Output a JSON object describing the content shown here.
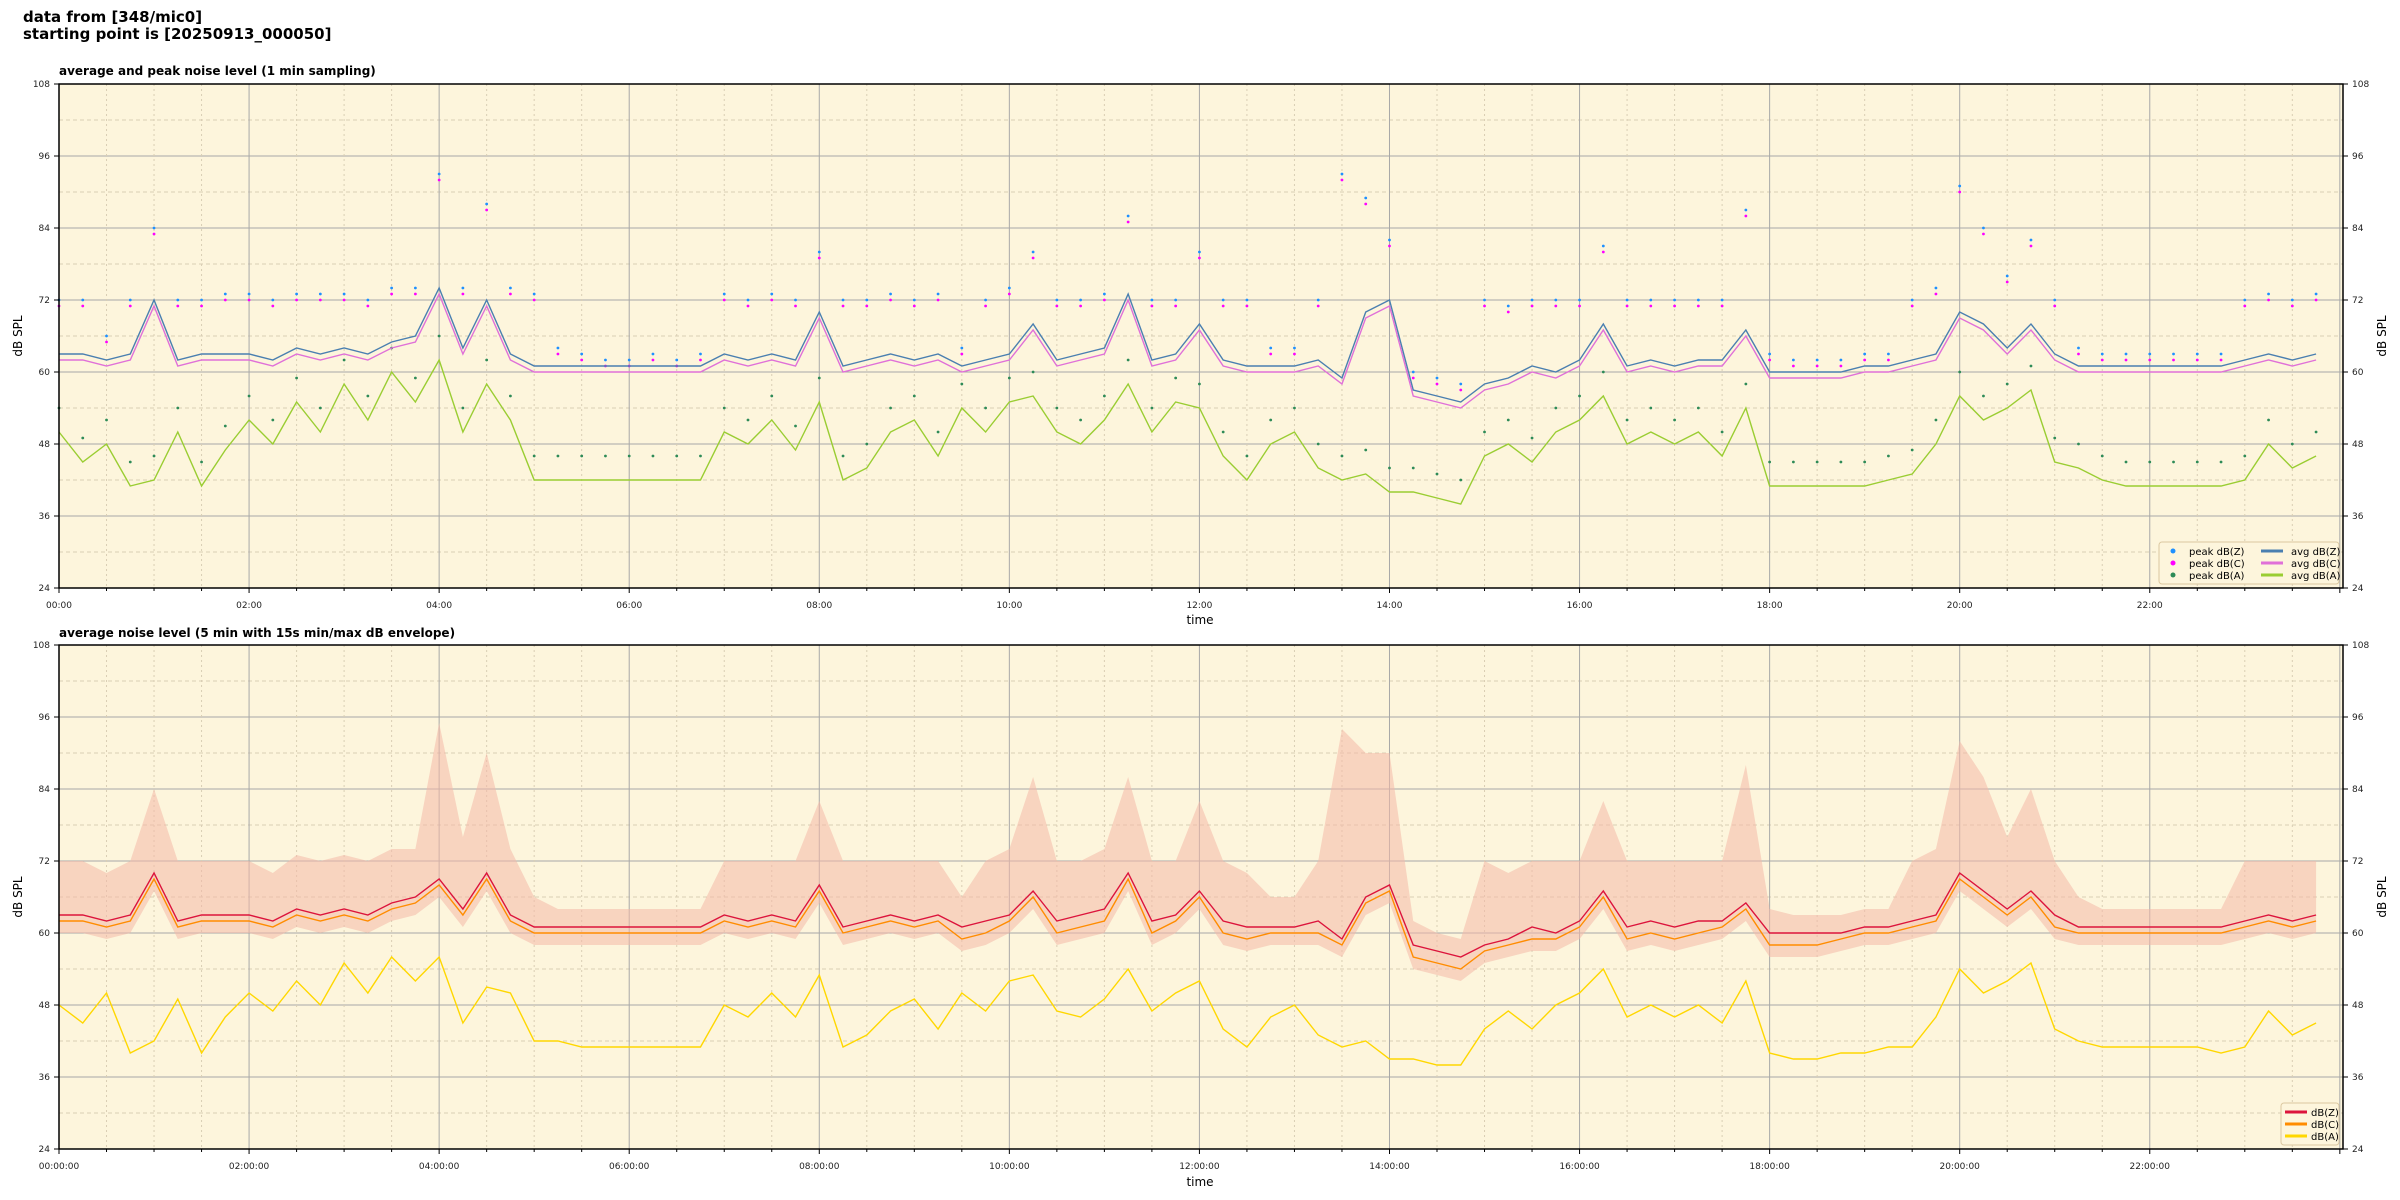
{
  "header": {
    "line1": "data from [348/mic0]",
    "line2": "starting point is [20250913_000050]"
  },
  "chart_data": [
    {
      "type": "line",
      "title": "average and peak noise level (1 min sampling)",
      "xlabel": "time",
      "ylabel": "dB SPL",
      "ylim": [
        24,
        108
      ],
      "yticks": [
        "24",
        "36",
        "48",
        "60",
        "72",
        "84",
        "96",
        "108"
      ],
      "xticks": [
        "00:00",
        "02:00",
        "04:00",
        "06:00",
        "08:00",
        "10:00",
        "12:00",
        "14:00",
        "16:00",
        "18:00",
        "20:00",
        "22:00"
      ],
      "xlim": [
        "00:00",
        "24:02"
      ],
      "grid": true,
      "background": "#fdf5dc",
      "legend_position": "lower-right",
      "x": [
        "00:00",
        "00:15",
        "00:30",
        "00:45",
        "01:00",
        "01:15",
        "01:30",
        "01:45",
        "02:00",
        "02:15",
        "02:30",
        "02:45",
        "03:00",
        "03:15",
        "03:30",
        "03:45",
        "04:00",
        "04:15",
        "04:30",
        "04:45",
        "05:00",
        "05:15",
        "05:30",
        "05:45",
        "06:00",
        "06:15",
        "06:30",
        "06:45",
        "07:00",
        "07:15",
        "07:30",
        "07:45",
        "08:00",
        "08:15",
        "08:30",
        "08:45",
        "09:00",
        "09:15",
        "09:30",
        "09:45",
        "10:00",
        "10:15",
        "10:30",
        "10:45",
        "11:00",
        "11:15",
        "11:30",
        "11:45",
        "12:00",
        "12:15",
        "12:30",
        "12:45",
        "13:00",
        "13:15",
        "13:30",
        "13:45",
        "14:00",
        "14:15",
        "14:30",
        "14:45",
        "15:00",
        "15:15",
        "15:30",
        "15:45",
        "16:00",
        "16:15",
        "16:30",
        "16:45",
        "17:00",
        "17:15",
        "17:30",
        "17:45",
        "18:00",
        "18:15",
        "18:30",
        "18:45",
        "19:00",
        "19:15",
        "19:30",
        "19:45",
        "20:00",
        "20:15",
        "20:30",
        "20:45",
        "21:00",
        "21:15",
        "21:30",
        "21:45",
        "22:00",
        "22:15",
        "22:30",
        "22:45",
        "23:00",
        "23:15",
        "23:30",
        "23:45"
      ],
      "series": [
        {
          "name": "peak dB(Z)",
          "kind": "scatter",
          "color": "#1e90ff",
          "values": [
            72,
            72,
            66,
            72,
            84,
            72,
            72,
            73,
            73,
            72,
            73,
            73,
            73,
            72,
            74,
            74,
            93,
            74,
            88,
            74,
            73,
            64,
            63,
            62,
            62,
            63,
            62,
            63,
            73,
            72,
            73,
            72,
            80,
            72,
            72,
            73,
            72,
            73,
            64,
            72,
            74,
            80,
            72,
            72,
            73,
            86,
            72,
            72,
            80,
            72,
            72,
            64,
            64,
            72,
            93,
            89,
            82,
            60,
            59,
            58,
            72,
            71,
            72,
            72,
            72,
            81,
            72,
            72,
            72,
            72,
            72,
            87,
            63,
            62,
            62,
            62,
            63,
            63,
            72,
            74,
            91,
            84,
            76,
            82,
            72,
            64,
            63,
            63,
            63,
            63,
            63,
            63,
            72,
            73,
            72,
            73
          ]
        },
        {
          "name": "peak dB(C)",
          "kind": "scatter",
          "color": "#ff00ff",
          "values": [
            71,
            71,
            65,
            71,
            83,
            71,
            71,
            72,
            72,
            71,
            72,
            72,
            72,
            71,
            73,
            73,
            92,
            73,
            87,
            73,
            72,
            63,
            62,
            61,
            61,
            62,
            61,
            62,
            72,
            71,
            72,
            71,
            79,
            71,
            71,
            72,
            71,
            72,
            63,
            71,
            73,
            79,
            71,
            71,
            72,
            85,
            71,
            71,
            79,
            71,
            71,
            63,
            63,
            71,
            92,
            88,
            81,
            59,
            58,
            57,
            71,
            70,
            71,
            71,
            71,
            80,
            71,
            71,
            71,
            71,
            71,
            86,
            62,
            61,
            61,
            61,
            62,
            62,
            71,
            73,
            90,
            83,
            75,
            81,
            71,
            63,
            62,
            62,
            62,
            62,
            62,
            62,
            71,
            72,
            71,
            72
          ]
        },
        {
          "name": "peak dB(A)",
          "kind": "scatter",
          "color": "#2e8b57",
          "values": [
            54,
            49,
            52,
            45,
            46,
            54,
            45,
            51,
            56,
            52,
            59,
            54,
            62,
            56,
            64,
            59,
            66,
            54,
            62,
            56,
            46,
            46,
            46,
            46,
            46,
            46,
            46,
            46,
            54,
            52,
            56,
            51,
            59,
            46,
            48,
            54,
            56,
            50,
            58,
            54,
            59,
            60,
            54,
            52,
            56,
            62,
            54,
            59,
            58,
            50,
            46,
            52,
            54,
            48,
            46,
            47,
            44,
            44,
            43,
            42,
            50,
            52,
            49,
            54,
            56,
            60,
            52,
            54,
            52,
            54,
            50,
            58,
            45,
            45,
            45,
            45,
            45,
            46,
            47,
            52,
            60,
            56,
            58,
            61,
            49,
            48,
            46,
            45,
            45,
            45,
            45,
            45,
            46,
            52,
            48,
            50
          ]
        },
        {
          "name": "avg dB(Z)",
          "kind": "line",
          "color": "#4a7fb0",
          "values": [
            63,
            63,
            62,
            63,
            72,
            62,
            63,
            63,
            63,
            62,
            64,
            63,
            64,
            63,
            65,
            66,
            74,
            64,
            72,
            63,
            61,
            61,
            61,
            61,
            61,
            61,
            61,
            61,
            63,
            62,
            63,
            62,
            70,
            61,
            62,
            63,
            62,
            63,
            61,
            62,
            63,
            68,
            62,
            63,
            64,
            73,
            62,
            63,
            68,
            62,
            61,
            61,
            61,
            62,
            59,
            70,
            72,
            57,
            56,
            55,
            58,
            59,
            61,
            60,
            62,
            68,
            61,
            62,
            61,
            62,
            62,
            67,
            60,
            60,
            60,
            60,
            61,
            61,
            62,
            63,
            70,
            68,
            64,
            68,
            63,
            61,
            61,
            61,
            61,
            61,
            61,
            61,
            62,
            63,
            62,
            63
          ]
        },
        {
          "name": "avg dB(C)",
          "kind": "line",
          "color": "#e070d8",
          "values": [
            62,
            62,
            61,
            62,
            71,
            61,
            62,
            62,
            62,
            61,
            63,
            62,
            63,
            62,
            64,
            65,
            73,
            63,
            71,
            62,
            60,
            60,
            60,
            60,
            60,
            60,
            60,
            60,
            62,
            61,
            62,
            61,
            69,
            60,
            61,
            62,
            61,
            62,
            60,
            61,
            62,
            67,
            61,
            62,
            63,
            72,
            61,
            62,
            67,
            61,
            60,
            60,
            60,
            61,
            58,
            69,
            71,
            56,
            55,
            54,
            57,
            58,
            60,
            59,
            61,
            67,
            60,
            61,
            60,
            61,
            61,
            66,
            59,
            59,
            59,
            59,
            60,
            60,
            61,
            62,
            69,
            67,
            63,
            67,
            62,
            60,
            60,
            60,
            60,
            60,
            60,
            60,
            61,
            62,
            61,
            62
          ]
        },
        {
          "name": "avg dB(A)",
          "kind": "line",
          "color": "#9acd32",
          "values": [
            50,
            45,
            48,
            41,
            42,
            50,
            41,
            47,
            52,
            48,
            55,
            50,
            58,
            52,
            60,
            55,
            62,
            50,
            58,
            52,
            42,
            42,
            42,
            42,
            42,
            42,
            42,
            42,
            50,
            48,
            52,
            47,
            55,
            42,
            44,
            50,
            52,
            46,
            54,
            50,
            55,
            56,
            50,
            48,
            52,
            58,
            50,
            55,
            54,
            46,
            42,
            48,
            50,
            44,
            42,
            43,
            40,
            40,
            39,
            38,
            46,
            48,
            45,
            50,
            52,
            56,
            48,
            50,
            48,
            50,
            46,
            54,
            41,
            41,
            41,
            41,
            41,
            42,
            43,
            48,
            56,
            52,
            54,
            57,
            45,
            44,
            42,
            41,
            41,
            41,
            41,
            41,
            42,
            48,
            44,
            46
          ]
        }
      ]
    },
    {
      "type": "line",
      "title": "average noise level (5 min with 15s min/max dB envelope)",
      "xlabel": "time",
      "ylabel": "dB SPL",
      "ylim": [
        24,
        108
      ],
      "yticks": [
        "24",
        "36",
        "48",
        "60",
        "72",
        "84",
        "96",
        "108"
      ],
      "xticks": [
        "00:00:00",
        "02:00:00",
        "04:00:00",
        "06:00:00",
        "08:00:00",
        "10:00:00",
        "12:00:00",
        "14:00:00",
        "16:00:00",
        "18:00:00",
        "20:00:00",
        "22:00:00"
      ],
      "xlim": [
        "00:00",
        "24:02"
      ],
      "grid": true,
      "background": "#fdf5dc",
      "legend_position": "lower-right",
      "envelope_color": "#f4b8a8",
      "envelope_max": [
        72,
        72,
        70,
        72,
        84,
        72,
        72,
        72,
        72,
        70,
        73,
        72,
        73,
        72,
        74,
        74,
        95,
        76,
        90,
        74,
        66,
        64,
        64,
        64,
        64,
        64,
        64,
        64,
        72,
        72,
        72,
        72,
        82,
        72,
        72,
        72,
        72,
        72,
        66,
        72,
        74,
        86,
        72,
        72,
        74,
        86,
        72,
        72,
        82,
        72,
        70,
        66,
        66,
        72,
        94,
        90,
        90,
        62,
        60,
        59,
        72,
        70,
        72,
        72,
        72,
        82,
        72,
        72,
        72,
        72,
        72,
        88,
        64,
        63,
        63,
        63,
        64,
        64,
        72,
        74,
        92,
        86,
        76,
        84,
        72,
        66,
        64,
        64,
        64,
        64,
        64,
        64,
        72,
        72,
        72,
        72
      ],
      "series": [
        {
          "name": "dB(Z)",
          "kind": "line",
          "color": "#dc143c",
          "values": [
            63,
            63,
            62,
            63,
            70,
            62,
            63,
            63,
            63,
            62,
            64,
            63,
            64,
            63,
            65,
            66,
            69,
            64,
            70,
            63,
            61,
            61,
            61,
            61,
            61,
            61,
            61,
            61,
            63,
            62,
            63,
            62,
            68,
            61,
            62,
            63,
            62,
            63,
            61,
            62,
            63,
            67,
            62,
            63,
            64,
            70,
            62,
            63,
            67,
            62,
            61,
            61,
            61,
            62,
            59,
            66,
            68,
            58,
            57,
            56,
            58,
            59,
            61,
            60,
            62,
            67,
            61,
            62,
            61,
            62,
            62,
            65,
            60,
            60,
            60,
            60,
            61,
            61,
            62,
            63,
            70,
            67,
            64,
            67,
            63,
            61,
            61,
            61,
            61,
            61,
            61,
            61,
            62,
            63,
            62,
            63
          ]
        },
        {
          "name": "dB(C)",
          "kind": "line",
          "color": "#ff8c00",
          "values": [
            62,
            62,
            61,
            62,
            69,
            61,
            62,
            62,
            62,
            61,
            63,
            62,
            63,
            62,
            64,
            65,
            68,
            63,
            69,
            62,
            60,
            60,
            60,
            60,
            60,
            60,
            60,
            60,
            62,
            61,
            62,
            61,
            67,
            60,
            61,
            62,
            61,
            62,
            59,
            60,
            62,
            66,
            60,
            61,
            62,
            69,
            60,
            62,
            66,
            60,
            59,
            60,
            60,
            60,
            58,
            65,
            67,
            56,
            55,
            54,
            57,
            58,
            59,
            59,
            61,
            66,
            59,
            60,
            59,
            60,
            61,
            64,
            58,
            58,
            58,
            59,
            60,
            60,
            61,
            62,
            69,
            66,
            63,
            66,
            61,
            60,
            60,
            60,
            60,
            60,
            60,
            60,
            61,
            62,
            61,
            62
          ]
        },
        {
          "name": "dB(A)",
          "kind": "line",
          "color": "#ffd700",
          "values": [
            48,
            45,
            50,
            40,
            42,
            49,
            40,
            46,
            50,
            47,
            52,
            48,
            55,
            50,
            56,
            52,
            56,
            45,
            51,
            50,
            42,
            42,
            41,
            41,
            41,
            41,
            41,
            41,
            48,
            46,
            50,
            46,
            53,
            41,
            43,
            47,
            49,
            44,
            50,
            47,
            52,
            53,
            47,
            46,
            49,
            54,
            47,
            50,
            52,
            44,
            41,
            46,
            48,
            43,
            41,
            42,
            39,
            39,
            38,
            38,
            44,
            47,
            44,
            48,
            50,
            54,
            46,
            48,
            46,
            48,
            45,
            52,
            40,
            39,
            39,
            40,
            40,
            41,
            41,
            46,
            54,
            50,
            52,
            55,
            44,
            42,
            41,
            41,
            41,
            41,
            41,
            40,
            41,
            47,
            43,
            45
          ]
        }
      ]
    }
  ]
}
